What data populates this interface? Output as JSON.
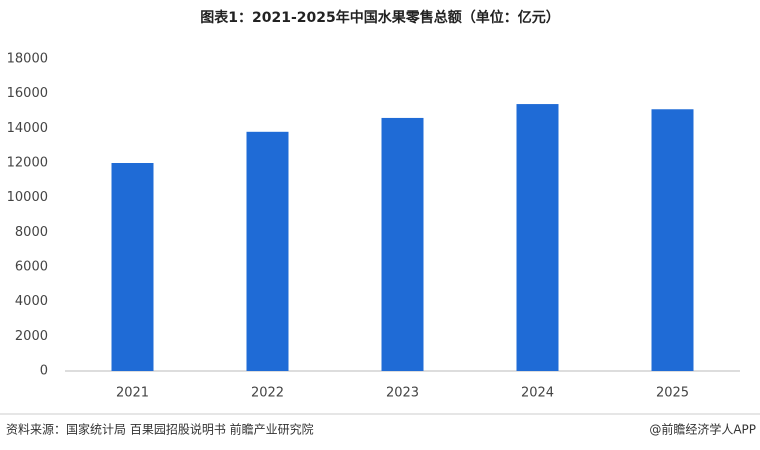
{
  "chart_data": {
    "type": "bar",
    "title": "图表1：2021-2025年中国水果零售总额（单位：亿元）",
    "categories": [
      "2021",
      "2022",
      "2023",
      "2024",
      "2025"
    ],
    "values": [
      12000,
      13800,
      14600,
      15400,
      15100
    ],
    "color": "#1f6bd6",
    "ylim": [
      0,
      18000
    ],
    "yticks": [
      0,
      2000,
      4000,
      6000,
      8000,
      10000,
      12000,
      14000,
      16000,
      18000
    ],
    "grid": false,
    "source": "资料来源：国家统计局 百果园招股说明书 前瞻产业研究院",
    "credit": "@前瞻经济学人APP"
  }
}
